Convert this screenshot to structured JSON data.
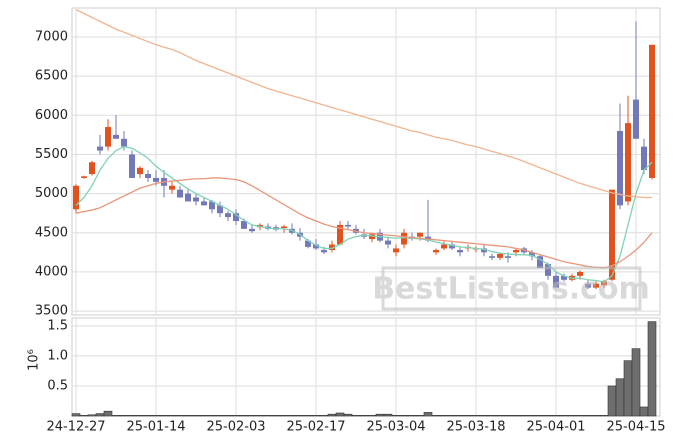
{
  "chart_data": {
    "type": "candlestick",
    "categories": [
      "24-12-27",
      null,
      null,
      null,
      null,
      null,
      null,
      null,
      null,
      null,
      "25-01-14",
      null,
      null,
      null,
      null,
      null,
      null,
      null,
      null,
      null,
      "25-02-03",
      null,
      null,
      null,
      null,
      null,
      null,
      null,
      null,
      null,
      "25-02-17",
      null,
      null,
      null,
      null,
      null,
      null,
      null,
      null,
      null,
      "25-03-04",
      null,
      null,
      null,
      null,
      null,
      null,
      null,
      null,
      null,
      "25-03-18",
      null,
      null,
      null,
      null,
      null,
      null,
      null,
      null,
      null,
      "25-04-01",
      null,
      null,
      null,
      null,
      null,
      null,
      null,
      null,
      null,
      "25-04-15",
      null,
      null
    ],
    "open": [
      4800,
      5200,
      5250,
      5600,
      5600,
      5750,
      5700,
      5500,
      5250,
      5250,
      5200,
      5200,
      5050,
      5050,
      5000,
      4950,
      4900,
      4900,
      4850,
      4750,
      4750,
      4650,
      4550,
      4570,
      4580,
      4570,
      4560,
      4550,
      4500,
      4400,
      4350,
      4280,
      4280,
      4350,
      4600,
      4550,
      4480,
      4420,
      4500,
      4400,
      4250,
      4350,
      4450,
      4450,
      4450,
      4250,
      4300,
      4350,
      4280,
      4300,
      4300,
      4300,
      4200,
      4180,
      4200,
      4250,
      4300,
      4250,
      4200,
      4100,
      3950,
      3950,
      3900,
      3950,
      3850,
      3800,
      3830,
      3900,
      5800,
      4900,
      6200,
      5600,
      5200
    ],
    "high": [
      5120,
      5230,
      5420,
      5750,
      5950,
      6000,
      5800,
      5550,
      5350,
      5300,
      5300,
      5300,
      5150,
      5100,
      5050,
      5000,
      4950,
      4920,
      4900,
      4780,
      4800,
      4680,
      4600,
      4620,
      4620,
      4600,
      4600,
      4620,
      4560,
      4420,
      4420,
      4320,
      4400,
      4650,
      4650,
      4600,
      4550,
      4500,
      4550,
      4450,
      4350,
      4550,
      4500,
      4500,
      4920,
      4300,
      4400,
      4400,
      4320,
      4350,
      4330,
      4350,
      4230,
      4250,
      4250,
      4300,
      4320,
      4280,
      4220,
      4120,
      4000,
      3980,
      3980,
      4020,
      3900,
      3880,
      3900,
      5050,
      6150,
      6250,
      7200,
      5700,
      6900
    ],
    "low": [
      4750,
      5190,
      5230,
      5500,
      5550,
      5700,
      5550,
      5200,
      5200,
      5150,
      5100,
      4950,
      5000,
      4950,
      4900,
      4850,
      4850,
      4750,
      4700,
      4650,
      4600,
      4550,
      4500,
      4530,
      4530,
      4520,
      4500,
      4480,
      4400,
      4300,
      4280,
      4230,
      4250,
      4350,
      4550,
      4480,
      4420,
      4380,
      4380,
      4300,
      4200,
      4300,
      4400,
      4400,
      4380,
      4220,
      4280,
      4280,
      4200,
      4260,
      4250,
      4200,
      4150,
      4150,
      4120,
      4200,
      4230,
      4150,
      4050,
      3900,
      3800,
      3880,
      3880,
      3900,
      3780,
      3780,
      3800,
      3880,
      4800,
      4850,
      5700,
      5250,
      5180
    ],
    "close": [
      5100,
      5220,
      5400,
      5550,
      5850,
      5700,
      5600,
      5200,
      5330,
      5200,
      5150,
      5100,
      5100,
      4950,
      4900,
      4900,
      4850,
      4800,
      4750,
      4700,
      4650,
      4550,
      4520,
      4600,
      4550,
      4540,
      4580,
      4500,
      4450,
      4320,
      4300,
      4250,
      4350,
      4600,
      4580,
      4500,
      4450,
      4480,
      4400,
      4350,
      4300,
      4500,
      4420,
      4500,
      4400,
      4280,
      4350,
      4300,
      4250,
      4320,
      4300,
      4250,
      4180,
      4230,
      4180,
      4280,
      4250,
      4200,
      4050,
      3950,
      3800,
      3900,
      3950,
      4000,
      3800,
      3850,
      3880,
      5050,
      4850,
      5900,
      5700,
      5300,
      6900
    ],
    "up_color": "#e2521f",
    "down_color": "#7278b8",
    "series": [
      {
        "color": "#7fd3b8",
        "values": [
          4850,
          4950,
          5100,
          5300,
          5450,
          5550,
          5600,
          5580,
          5520,
          5450,
          5350,
          5270,
          5200,
          5130,
          5060,
          5000,
          4950,
          4900,
          4850,
          4800,
          4730,
          4660,
          4600,
          4580,
          4560,
          4550,
          4550,
          4530,
          4480,
          4400,
          4340,
          4300,
          4300,
          4350,
          4420,
          4450,
          4470,
          4460,
          4450,
          4440,
          4430,
          4440,
          4430,
          4420,
          4410,
          4380,
          4360,
          4340,
          4320,
          4310,
          4300,
          4290,
          4260,
          4240,
          4230,
          4220,
          4220,
          4210,
          4160,
          4100,
          4000,
          3950,
          3920,
          3920,
          3900,
          3890,
          3870,
          3950,
          4200,
          4600,
          5000,
          5300,
          5400
        ]
      },
      {
        "color": "#e9967a",
        "values": [
          4750,
          4770,
          4790,
          4820,
          4870,
          4920,
          4970,
          5020,
          5070,
          5100,
          5130,
          5150,
          5160,
          5170,
          5180,
          5190,
          5190,
          5200,
          5200,
          5190,
          5180,
          5150,
          5100,
          5040,
          4980,
          4920,
          4860,
          4800,
          4740,
          4690,
          4650,
          4610,
          4580,
          4560,
          4540,
          4520,
          4500,
          4490,
          4480,
          4470,
          4460,
          4450,
          4440,
          4430,
          4420,
          4410,
          4400,
          4390,
          4380,
          4370,
          4360,
          4350,
          4340,
          4330,
          4320,
          4300,
          4280,
          4250,
          4220,
          4190,
          4160,
          4130,
          4110,
          4090,
          4070,
          4060,
          4050,
          4080,
          4130,
          4200,
          4280,
          4380,
          4500
        ]
      },
      {
        "color": "#f0b48f",
        "values": [
          7350,
          7300,
          7250,
          7200,
          7150,
          7100,
          7060,
          7020,
          6980,
          6940,
          6900,
          6870,
          6840,
          6800,
          6750,
          6700,
          6660,
          6620,
          6580,
          6540,
          6500,
          6460,
          6420,
          6380,
          6340,
          6310,
          6280,
          6250,
          6220,
          6190,
          6160,
          6130,
          6100,
          6070,
          6040,
          6010,
          5980,
          5950,
          5920,
          5890,
          5860,
          5830,
          5800,
          5780,
          5750,
          5720,
          5700,
          5680,
          5650,
          5620,
          5600,
          5570,
          5540,
          5510,
          5480,
          5450,
          5410,
          5370,
          5330,
          5290,
          5250,
          5210,
          5170,
          5130,
          5100,
          5070,
          5040,
          5010,
          4990,
          4970,
          4960,
          4950,
          4950
        ]
      }
    ],
    "ylim": [
      3450,
      7370
    ],
    "yticks": [
      3500,
      4000,
      4500,
      5000,
      5500,
      6000,
      6500,
      7000
    ],
    "grid": true,
    "watermark": "BestListens.com",
    "volume": {
      "type": "bar",
      "color": "#6e6e6e",
      "scale_label": "10⁶",
      "values": [
        0.04,
        0.01,
        0.02,
        0.04,
        0.08,
        0.01,
        0.01,
        0.01,
        0.01,
        0.01,
        0.01,
        0.01,
        0.01,
        0.01,
        0.01,
        0.01,
        0.01,
        0.01,
        0.01,
        0.01,
        0.01,
        0.01,
        0.01,
        0.01,
        0.01,
        0.01,
        0.01,
        0.01,
        0.01,
        0.01,
        0.01,
        0.01,
        0.03,
        0.05,
        0.03,
        0.01,
        0.01,
        0.01,
        0.03,
        0.03,
        0.01,
        0.01,
        0.01,
        0.01,
        0.06,
        0.01,
        0.01,
        0.01,
        0.01,
        0.01,
        0.01,
        0.01,
        0.01,
        0.01,
        0.01,
        0.01,
        0.01,
        0.01,
        0.01,
        0.01,
        0.01,
        0.01,
        0.01,
        0.01,
        0.01,
        0.01,
        0.01,
        0.5,
        0.62,
        0.92,
        1.12,
        0.15,
        1.57
      ],
      "ylim": [
        0,
        1.63
      ],
      "yticks": [
        0.5,
        {
          "value": 1,
          "label": "1.0"
        },
        1.5
      ]
    }
  }
}
